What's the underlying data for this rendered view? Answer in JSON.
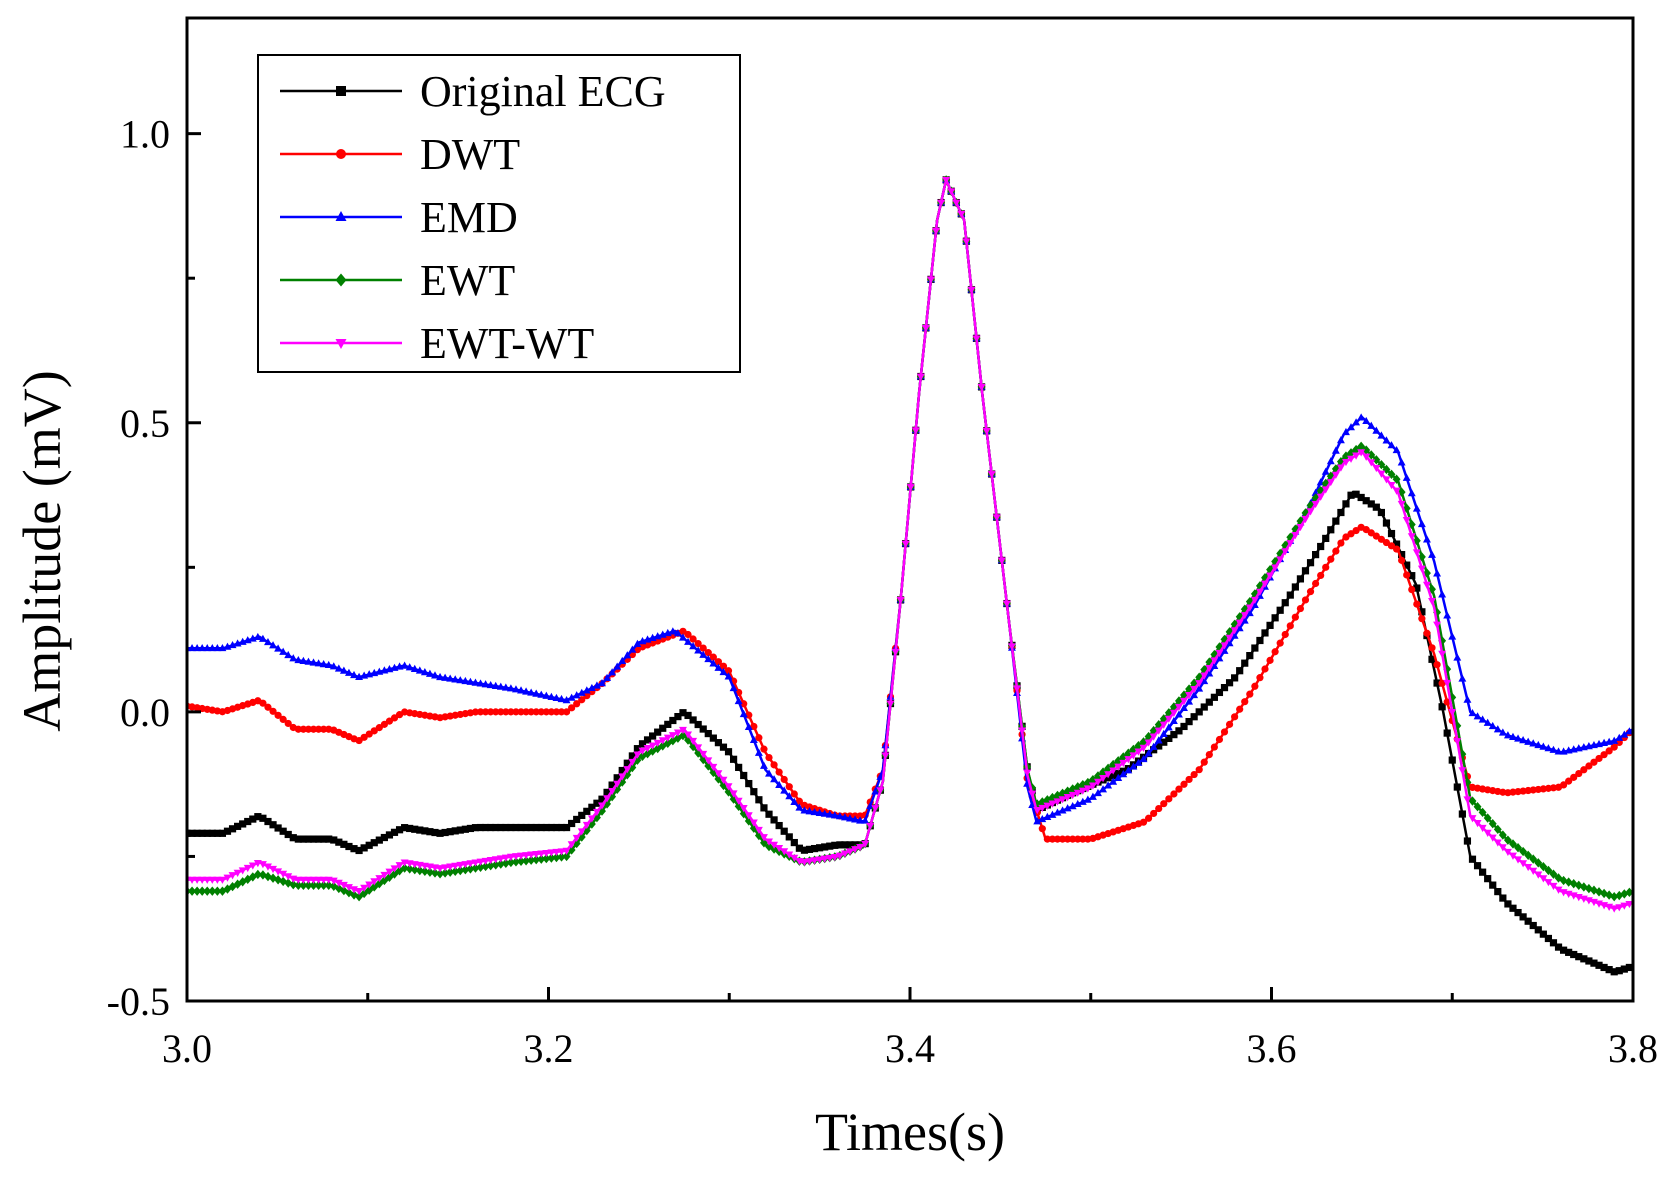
{
  "chart_data": {
    "type": "line",
    "xlabel": "Times(s)",
    "ylabel": "Amplitude (mV)",
    "xlim": [
      3.0,
      3.8
    ],
    "ylim": [
      -0.5,
      1.2
    ],
    "x_ticks": [
      3.0,
      3.2,
      3.4,
      3.6,
      3.8
    ],
    "x_tick_labels": [
      "3.0",
      "3.2",
      "3.4",
      "3.6",
      "3.8"
    ],
    "y_ticks": [
      -0.5,
      0.0,
      0.5,
      1.0
    ],
    "y_tick_labels": [
      "-0.5",
      "0.0",
      "0.5",
      "1.0"
    ],
    "y_minor_ticks": [
      -0.25,
      0.25,
      0.75
    ],
    "grid": false,
    "legend_position": "top-left",
    "series": [
      {
        "name": "Original ECG",
        "color": "#000000",
        "marker": "square",
        "x": [
          3.0,
          3.02,
          3.04,
          3.06,
          3.08,
          3.095,
          3.12,
          3.14,
          3.16,
          3.18,
          3.21,
          3.23,
          3.25,
          3.275,
          3.3,
          3.32,
          3.34,
          3.36,
          3.375,
          3.385,
          3.395,
          3.405,
          3.415,
          3.42,
          3.43,
          3.44,
          3.455,
          3.465,
          3.47,
          3.49,
          3.52,
          3.55,
          3.58,
          3.61,
          3.63,
          3.645,
          3.66,
          3.68,
          3.695,
          3.71,
          3.73,
          3.76,
          3.79,
          3.8
        ],
        "y": [
          -0.21,
          -0.21,
          -0.18,
          -0.22,
          -0.22,
          -0.24,
          -0.2,
          -0.21,
          -0.2,
          -0.2,
          -0.2,
          -0.15,
          -0.06,
          0.0,
          -0.07,
          -0.17,
          -0.24,
          -0.23,
          -0.23,
          -0.12,
          0.2,
          0.55,
          0.85,
          0.92,
          0.85,
          0.55,
          0.15,
          -0.1,
          -0.17,
          -0.14,
          -0.1,
          -0.03,
          0.06,
          0.2,
          0.3,
          0.38,
          0.35,
          0.22,
          0.0,
          -0.25,
          -0.33,
          -0.41,
          -0.45,
          -0.44
        ]
      },
      {
        "name": "DWT",
        "color": "#ff0000",
        "marker": "circle",
        "x": [
          3.0,
          3.02,
          3.04,
          3.06,
          3.08,
          3.095,
          3.12,
          3.14,
          3.16,
          3.18,
          3.21,
          3.23,
          3.25,
          3.275,
          3.3,
          3.32,
          3.34,
          3.36,
          3.375,
          3.385,
          3.395,
          3.405,
          3.415,
          3.42,
          3.43,
          3.44,
          3.455,
          3.465,
          3.475,
          3.5,
          3.53,
          3.56,
          3.59,
          3.62,
          3.64,
          3.65,
          3.67,
          3.69,
          3.71,
          3.73,
          3.76,
          3.79,
          3.8
        ],
        "y": [
          0.01,
          0.0,
          0.02,
          -0.03,
          -0.03,
          -0.05,
          0.0,
          -0.01,
          0.0,
          0.0,
          0.0,
          0.05,
          0.11,
          0.14,
          0.07,
          -0.07,
          -0.16,
          -0.18,
          -0.18,
          -0.1,
          0.2,
          0.55,
          0.85,
          0.92,
          0.85,
          0.55,
          0.15,
          -0.12,
          -0.22,
          -0.22,
          -0.19,
          -0.1,
          0.04,
          0.2,
          0.3,
          0.32,
          0.28,
          0.1,
          -0.13,
          -0.14,
          -0.13,
          -0.06,
          -0.03
        ]
      },
      {
        "name": "EMD",
        "color": "#0000ff",
        "marker": "triangle-up",
        "x": [
          3.0,
          3.02,
          3.04,
          3.06,
          3.08,
          3.095,
          3.12,
          3.14,
          3.16,
          3.18,
          3.21,
          3.23,
          3.25,
          3.27,
          3.3,
          3.32,
          3.34,
          3.36,
          3.375,
          3.385,
          3.395,
          3.405,
          3.415,
          3.42,
          3.43,
          3.44,
          3.455,
          3.465,
          3.47,
          3.5,
          3.53,
          3.56,
          3.59,
          3.62,
          3.64,
          3.65,
          3.67,
          3.69,
          3.71,
          3.73,
          3.76,
          3.79,
          3.8
        ],
        "y": [
          0.11,
          0.11,
          0.13,
          0.09,
          0.08,
          0.06,
          0.08,
          0.06,
          0.05,
          0.04,
          0.02,
          0.05,
          0.12,
          0.14,
          0.06,
          -0.1,
          -0.17,
          -0.18,
          -0.19,
          -0.1,
          0.2,
          0.55,
          0.85,
          0.92,
          0.85,
          0.55,
          0.15,
          -0.13,
          -0.19,
          -0.15,
          -0.08,
          0.04,
          0.18,
          0.35,
          0.48,
          0.51,
          0.45,
          0.26,
          0.0,
          -0.04,
          -0.07,
          -0.05,
          -0.03
        ]
      },
      {
        "name": "EWT",
        "color": "#008000",
        "marker": "diamond",
        "x": [
          3.0,
          3.02,
          3.04,
          3.06,
          3.08,
          3.095,
          3.12,
          3.14,
          3.16,
          3.18,
          3.21,
          3.23,
          3.25,
          3.275,
          3.3,
          3.32,
          3.34,
          3.36,
          3.375,
          3.385,
          3.395,
          3.405,
          3.415,
          3.42,
          3.43,
          3.44,
          3.455,
          3.465,
          3.47,
          3.5,
          3.53,
          3.56,
          3.59,
          3.62,
          3.64,
          3.65,
          3.67,
          3.69,
          3.71,
          3.73,
          3.76,
          3.79,
          3.8
        ],
        "y": [
          -0.31,
          -0.31,
          -0.28,
          -0.3,
          -0.3,
          -0.32,
          -0.27,
          -0.28,
          -0.27,
          -0.26,
          -0.25,
          -0.17,
          -0.08,
          -0.04,
          -0.14,
          -0.23,
          -0.26,
          -0.25,
          -0.23,
          -0.12,
          0.2,
          0.55,
          0.85,
          0.92,
          0.85,
          0.55,
          0.15,
          -0.1,
          -0.16,
          -0.12,
          -0.05,
          0.06,
          0.2,
          0.35,
          0.44,
          0.46,
          0.4,
          0.2,
          -0.15,
          -0.22,
          -0.29,
          -0.32,
          -0.31
        ]
      },
      {
        "name": "EWT-WT",
        "color": "#ff00ff",
        "marker": "triangle-down",
        "x": [
          3.0,
          3.02,
          3.04,
          3.06,
          3.08,
          3.095,
          3.12,
          3.14,
          3.16,
          3.18,
          3.21,
          3.23,
          3.25,
          3.275,
          3.3,
          3.32,
          3.34,
          3.36,
          3.375,
          3.385,
          3.395,
          3.405,
          3.415,
          3.42,
          3.43,
          3.44,
          3.455,
          3.465,
          3.47,
          3.5,
          3.53,
          3.56,
          3.59,
          3.62,
          3.64,
          3.65,
          3.67,
          3.69,
          3.71,
          3.73,
          3.76,
          3.79,
          3.8
        ],
        "y": [
          -0.29,
          -0.29,
          -0.26,
          -0.29,
          -0.29,
          -0.31,
          -0.26,
          -0.27,
          -0.26,
          -0.25,
          -0.24,
          -0.16,
          -0.07,
          -0.03,
          -0.13,
          -0.22,
          -0.26,
          -0.25,
          -0.23,
          -0.12,
          0.2,
          0.55,
          0.85,
          0.92,
          0.85,
          0.55,
          0.15,
          -0.11,
          -0.17,
          -0.13,
          -0.06,
          0.05,
          0.19,
          0.34,
          0.43,
          0.45,
          0.38,
          0.18,
          -0.18,
          -0.24,
          -0.31,
          -0.34,
          -0.33
        ]
      }
    ]
  }
}
